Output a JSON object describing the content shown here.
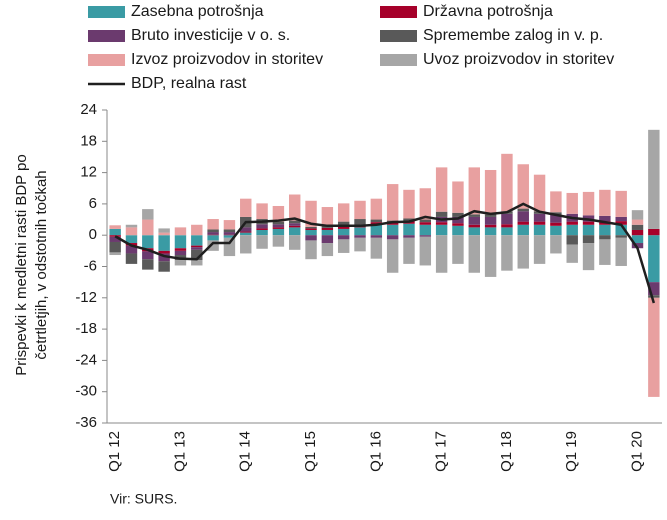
{
  "chart_data": {
    "type": "bar",
    "stacked": true,
    "y_label": [
      "Prispevki k medletni rasti BDP po",
      "četrtletjih, v odstotnih točkah"
    ],
    "source": "Vir: SURS.",
    "categories": [
      "Q1 12",
      null,
      null,
      null,
      "Q1 13",
      null,
      null,
      null,
      "Q1 14",
      null,
      null,
      null,
      "Q1 15",
      null,
      null,
      null,
      "Q1 16",
      null,
      null,
      null,
      "Q1 17",
      null,
      null,
      null,
      "Q1 18",
      null,
      null,
      null,
      "Q1 19",
      null,
      null,
      null,
      "Q1 20",
      null
    ],
    "ylim": [
      -36,
      24
    ],
    "yticks": [
      24,
      18,
      12,
      6,
      0,
      -6,
      -12,
      -18,
      -24,
      -30,
      -36
    ],
    "series": [
      {
        "name": "Zasebna potrošnja",
        "color": "#3a9ba4",
        "values": [
          1.2,
          -1.5,
          -2.5,
          -3,
          -2.5,
          -2,
          -1,
          -0.5,
          0.5,
          1,
          1.2,
          1.5,
          1,
          1,
          1.2,
          1.5,
          2,
          2,
          2.2,
          2,
          2,
          1.8,
          1.5,
          1.5,
          1.5,
          2,
          2,
          1.8,
          2,
          2,
          2,
          2,
          -1.5,
          -9
        ]
      },
      {
        "name": "Državna potrošnja",
        "color": "#a6002a",
        "values": [
          -0.3,
          -0.5,
          -0.6,
          -0.5,
          -0.5,
          -0.3,
          0.1,
          0.1,
          0.2,
          0.3,
          0.3,
          0.3,
          0.3,
          0.4,
          0.4,
          0.4,
          0.5,
          0.5,
          0.5,
          0.5,
          0.5,
          0.5,
          0.5,
          0.5,
          0.6,
          0.6,
          0.6,
          0.6,
          0.6,
          0.6,
          0.7,
          0.7,
          1,
          1.2
        ]
      },
      {
        "name": "Bruto investicije v o. s.",
        "color": "#6b3a6e",
        "values": [
          -1,
          -1.5,
          -1.5,
          -1.5,
          -0.8,
          -0.5,
          0.5,
          0.5,
          0.8,
          0.8,
          0.6,
          0.5,
          -1,
          -1.5,
          -0.8,
          -0.5,
          -0.5,
          -0.8,
          -0.5,
          -0.3,
          1,
          1.2,
          1.5,
          1.5,
          2,
          2,
          1.5,
          1.5,
          1.5,
          1.2,
          1,
          0.8,
          -1,
          -2.5
        ]
      },
      {
        "name": "Spremembe zalog in v. p.",
        "color": "#595959",
        "values": [
          -2,
          -2,
          -2,
          -2,
          -1,
          -2,
          0.5,
          0.5,
          2,
          1,
          0.5,
          0.5,
          0.3,
          0.5,
          1,
          1.2,
          0.5,
          0.3,
          0.5,
          0.5,
          1,
          0.8,
          0.5,
          0.5,
          0.5,
          0.5,
          0.5,
          0.5,
          -1.8,
          -1.5,
          -0.8,
          -0.5,
          1,
          -0.5
        ]
      },
      {
        "name": "Izvoz proizvodov in storitev",
        "color": "#e8a0a0",
        "values": [
          0.7,
          1.5,
          3,
          0.5,
          1.5,
          2,
          2,
          1.8,
          3.5,
          3,
          3,
          5,
          5,
          3.5,
          3.5,
          3.5,
          4,
          7,
          5.5,
          6,
          8.5,
          6,
          9,
          8.5,
          11,
          8.5,
          7,
          4,
          4,
          4.5,
          5,
          5,
          1,
          -19
        ]
      },
      {
        "name": "Uvoz proizvodov in storitev",
        "color": "#a6a6a6",
        "values": [
          -0.5,
          0.5,
          2,
          0.8,
          -1,
          -1,
          -2,
          -3.5,
          -3.5,
          -2.6,
          -2.2,
          -2.8,
          -3.6,
          -2.5,
          -2.6,
          -2.6,
          -4,
          -6.4,
          -5,
          -5.5,
          -7.2,
          -5.5,
          -7.2,
          -8,
          -6.8,
          -6.4,
          -5.5,
          -3.5,
          -3.5,
          -5.2,
          -4.9,
          -5.4,
          1.8,
          19
        ]
      }
    ],
    "line": {
      "name": "BDP, realna rast",
      "color": "#1f1f1f",
      "values": [
        -0.2,
        -2.0,
        -2.8,
        -4.0,
        -4.5,
        -4.6,
        -1.5,
        -1.5,
        2.5,
        2.6,
        2.8,
        3.2,
        2.2,
        1.8,
        1.8,
        1.8,
        2.0,
        2.5,
        2.6,
        3.5,
        3.0,
        3.2,
        4.6,
        4.1,
        4.4,
        6.0,
        4.5,
        3.9,
        3.3,
        3.0,
        2.5,
        2.0,
        -2.5,
        -13.0
      ]
    }
  }
}
